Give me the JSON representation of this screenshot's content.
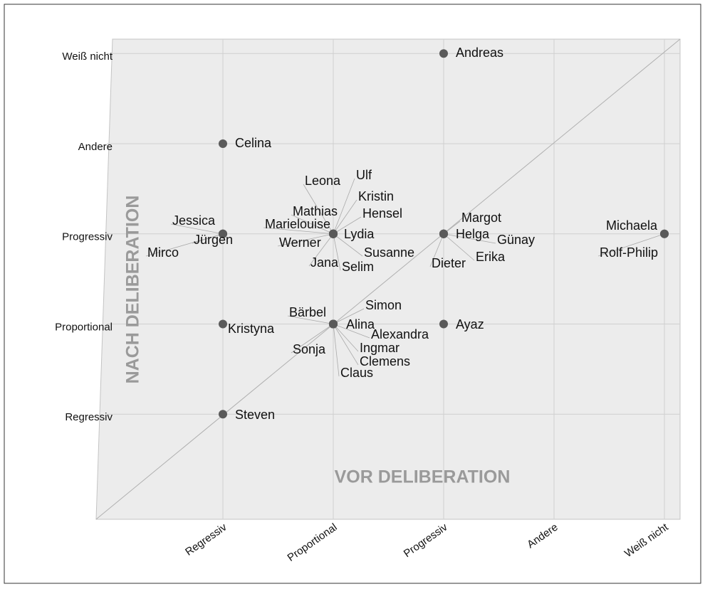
{
  "chart_data": {
    "type": "scatter",
    "x_label": "VOR DELIBERATION",
    "y_label": "NACH DELIBERATION",
    "color": "#5a5a5a",
    "grid": true,
    "xlim": [
      0,
      5.1
    ],
    "ylim": [
      0,
      5.15
    ],
    "xticks": [
      {
        "value": 1,
        "label": "Regressiv"
      },
      {
        "value": 2,
        "label": "Proportional"
      },
      {
        "value": 3,
        "label": "Progressiv"
      },
      {
        "value": 4,
        "label": "Andere"
      },
      {
        "value": 5,
        "label": "Weiß nicht"
      }
    ],
    "yticks": [
      {
        "value": 1,
        "label": "Regressiv"
      },
      {
        "value": 2,
        "label": "Proportional"
      },
      {
        "value": 3,
        "label": "Progressiv"
      },
      {
        "value": 4,
        "label": "Andere"
      },
      {
        "value": 5,
        "label": "Weiß nicht"
      }
    ],
    "points": [
      {
        "label": "Andreas",
        "x": 3,
        "y": 5
      },
      {
        "label": "Celina",
        "x": 1,
        "y": 4
      },
      {
        "label": "Jessica",
        "x": 1,
        "y": 3
      },
      {
        "label": "Jürgen",
        "x": 1,
        "y": 3
      },
      {
        "label": "Mirco",
        "x": 1,
        "y": 3
      },
      {
        "label": "Michaela",
        "x": 5,
        "y": 3
      },
      {
        "label": "Rolf-Philip",
        "x": 5,
        "y": 3
      },
      {
        "label": "Leona",
        "x": 2,
        "y": 3
      },
      {
        "label": "Ulf",
        "x": 2,
        "y": 3
      },
      {
        "label": "Kristin",
        "x": 2,
        "y": 3
      },
      {
        "label": "Mathias",
        "x": 2,
        "y": 3
      },
      {
        "label": "Hensel",
        "x": 2,
        "y": 3
      },
      {
        "label": "Marielouise",
        "x": 2,
        "y": 3
      },
      {
        "label": "Lydia",
        "x": 2,
        "y": 3
      },
      {
        "label": "Werner",
        "x": 2,
        "y": 3
      },
      {
        "label": "Susanne",
        "x": 2,
        "y": 3
      },
      {
        "label": "Jana",
        "x": 2,
        "y": 3
      },
      {
        "label": "Selim",
        "x": 2,
        "y": 3
      },
      {
        "label": "Margot",
        "x": 3,
        "y": 3
      },
      {
        "label": "Helga",
        "x": 3,
        "y": 3
      },
      {
        "label": "Günay",
        "x": 3,
        "y": 3
      },
      {
        "label": "Erika",
        "x": 3,
        "y": 3
      },
      {
        "label": "Dieter",
        "x": 3,
        "y": 3
      },
      {
        "label": "Bärbel",
        "x": 2,
        "y": 2
      },
      {
        "label": "Simon",
        "x": 2,
        "y": 2
      },
      {
        "label": "Alina",
        "x": 2,
        "y": 2
      },
      {
        "label": "Alexandra",
        "x": 2,
        "y": 2
      },
      {
        "label": "Sonja",
        "x": 2,
        "y": 2
      },
      {
        "label": "Ingmar",
        "x": 2,
        "y": 2
      },
      {
        "label": "Clemens",
        "x": 2,
        "y": 2
      },
      {
        "label": "Claus",
        "x": 2,
        "y": 2
      },
      {
        "label": "Kristyna",
        "x": 1,
        "y": 2
      },
      {
        "label": "Ayaz",
        "x": 3,
        "y": 2
      },
      {
        "label": "Steven",
        "x": 1,
        "y": 1
      }
    ]
  }
}
